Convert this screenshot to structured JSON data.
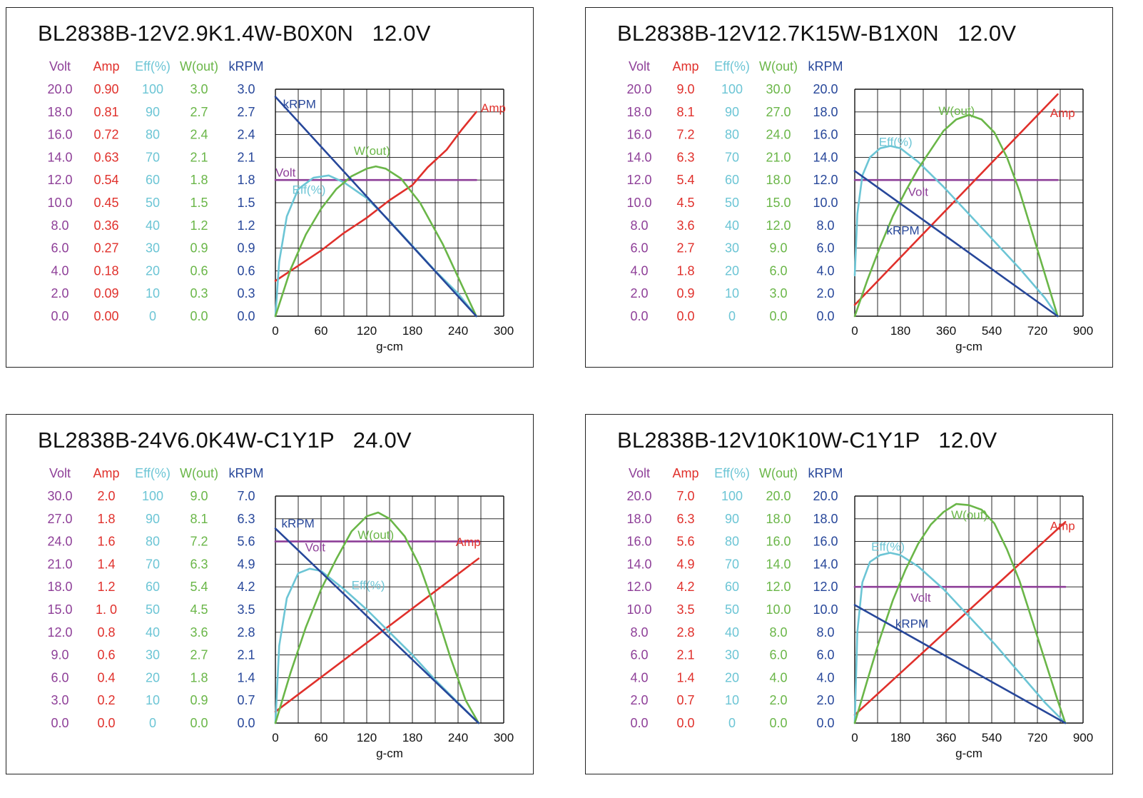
{
  "colors": {
    "volt": "#8e3f98",
    "amp": "#e0302b",
    "eff": "#6cc5d5",
    "wout": "#6ab648",
    "krpm": "#27479a",
    "grid": "#111111",
    "text": "#111111"
  },
  "chart_data": [
    {
      "type": "line",
      "title": "BL2838B-12V2.9K1.4W-B0X0N   12.0V",
      "xlabel": "g-cm",
      "x_ticks": [
        "0",
        "60",
        "120",
        "180",
        "240",
        "300"
      ],
      "xlim": [
        0,
        300
      ],
      "axes": [
        {
          "key": "volt",
          "header": "Volt",
          "ticks": [
            "0.0",
            "2.0",
            "4.0",
            "6.0",
            "8.0",
            "10.0",
            "12.0",
            "14.0",
            "16.0",
            "18.0",
            "20.0"
          ]
        },
        {
          "key": "amp",
          "header": "Amp",
          "ticks": [
            "0.00",
            "0.09",
            "0.18",
            "0.27",
            "0.36",
            "0.45",
            "0.54",
            "0.63",
            "0.72",
            "0.81",
            "0.90"
          ]
        },
        {
          "key": "eff",
          "header": "Eff(%)",
          "ticks": [
            "0",
            "10",
            "20",
            "30",
            "40",
            "50",
            "60",
            "70",
            "80",
            "90",
            "100"
          ]
        },
        {
          "key": "wout",
          "header": "W(out)",
          "ticks": [
            "0.0",
            "0.3",
            "0.6",
            "0.9",
            "1.2",
            "1.5",
            "1.8",
            "2.1",
            "2.4",
            "2.7",
            "3.0"
          ]
        },
        {
          "key": "krpm",
          "header": "kRPM",
          "ticks": [
            "0.0",
            "0.3",
            "0.6",
            "0.9",
            "1.2",
            "1.5",
            "1.8",
            "2.1",
            "2.4",
            "2.7",
            "3.0"
          ]
        }
      ],
      "series": [
        {
          "name": "Volt",
          "axis": "volt",
          "label_at": [
            0,
            12.3
          ],
          "x": [
            0,
            264
          ],
          "y": [
            12.0,
            12.0
          ]
        },
        {
          "name": "Amp",
          "axis": "amp",
          "label_at": [
            270,
            0.81
          ],
          "x": [
            0,
            30,
            60,
            90,
            120,
            150,
            180,
            200,
            225,
            245,
            264
          ],
          "y": [
            0.14,
            0.2,
            0.26,
            0.33,
            0.39,
            0.46,
            0.52,
            0.59,
            0.66,
            0.74,
            0.81
          ]
        },
        {
          "name": "Eff(%)",
          "axis": "eff",
          "label_at": [
            22,
            54
          ],
          "x": [
            0,
            5,
            15,
            30,
            50,
            70,
            90,
            120,
            150,
            180,
            210,
            240,
            264
          ],
          "y": [
            0,
            24,
            44,
            56,
            61,
            62,
            59,
            52,
            42,
            31,
            20,
            10,
            0
          ]
        },
        {
          "name": "W(out)",
          "axis": "wout",
          "label_at": [
            103,
            2.13
          ],
          "x": [
            0,
            20,
            40,
            60,
            80,
            100,
            120,
            132,
            145,
            165,
            190,
            220,
            250,
            264
          ],
          "y": [
            0,
            0.62,
            1.08,
            1.42,
            1.68,
            1.85,
            1.95,
            1.98,
            1.95,
            1.82,
            1.5,
            0.95,
            0.3,
            0
          ]
        },
        {
          "name": "kRPM",
          "axis": "krpm",
          "label_at": [
            10,
            2.75
          ],
          "x": [
            0,
            264
          ],
          "y": [
            2.9,
            0
          ]
        }
      ]
    },
    {
      "type": "line",
      "title": "BL2838B-12V12.7K15W-B1X0N   12.0V",
      "xlabel": "g-cm",
      "x_ticks": [
        "0",
        "180",
        "360",
        "540",
        "720",
        "900"
      ],
      "xlim": [
        0,
        900
      ],
      "axes": [
        {
          "key": "volt",
          "header": "Volt",
          "ticks": [
            "0.0",
            "2.0",
            "4.0",
            "6.0",
            "8.0",
            "10.0",
            "12.0",
            "14.0",
            "16.0",
            "18.0",
            "20.0"
          ]
        },
        {
          "key": "amp",
          "header": "Amp",
          "ticks": [
            "0.0",
            "0.9",
            "1.8",
            "2.7",
            "3.6",
            "4.5",
            "5.4",
            "6.3",
            "7.2",
            "8.1",
            "9.0"
          ]
        },
        {
          "key": "eff",
          "header": "Eff(%)",
          "ticks": [
            "0",
            "10",
            "20",
            "30",
            "40",
            "50",
            "60",
            "70",
            "80",
            "90",
            "100"
          ]
        },
        {
          "key": "wout",
          "header": "W(out)",
          "ticks": [
            "0.0",
            "3.0",
            "6.0",
            "9.0",
            "12.0",
            "15.0",
            "18.0",
            "21.0",
            "24.0",
            "27.0",
            "30.0"
          ]
        },
        {
          "key": "krpm",
          "header": "kRPM",
          "ticks": [
            "0.0",
            "2.0",
            "4.0",
            "6.0",
            "8.0",
            "10.0",
            "12.0",
            "14.0",
            "16.0",
            "18.0",
            "20.0"
          ]
        }
      ],
      "series": [
        {
          "name": "Volt",
          "axis": "volt",
          "label_at": [
            210,
            10.6
          ],
          "x": [
            0,
            800
          ],
          "y": [
            12.0,
            12.0
          ]
        },
        {
          "name": "Amp",
          "axis": "amp",
          "label_at": [
            770,
            7.9
          ],
          "x": [
            0,
            800
          ],
          "y": [
            0.45,
            8.8
          ]
        },
        {
          "name": "Eff(%)",
          "axis": "eff",
          "label_at": [
            95,
            75
          ],
          "x": [
            0,
            10,
            30,
            60,
            100,
            140,
            180,
            250,
            350,
            450,
            550,
            650,
            750,
            800
          ],
          "y": [
            18,
            45,
            62,
            70,
            74,
            75,
            74,
            68,
            57,
            45,
            33,
            21,
            8,
            0
          ]
        },
        {
          "name": "W(out)",
          "axis": "wout",
          "label_at": [
            330,
            26.6
          ],
          "x": [
            0,
            50,
            100,
            150,
            200,
            250,
            300,
            350,
            400,
            450,
            500,
            550,
            600,
            650,
            700,
            750,
            800
          ],
          "y": [
            0,
            4.8,
            9.2,
            13.2,
            16.5,
            19.5,
            22.0,
            24.5,
            26.0,
            26.6,
            26.0,
            24.3,
            21.0,
            16.5,
            11.0,
            5.5,
            0
          ]
        },
        {
          "name": "kRPM",
          "axis": "krpm",
          "label_at": [
            125,
            7.2
          ],
          "x": [
            0,
            800
          ],
          "y": [
            12.8,
            0
          ]
        }
      ]
    },
    {
      "type": "line",
      "title": "BL2838B-24V6.0K4W-C1Y1P   24.0V",
      "xlabel": "g-cm",
      "x_ticks": [
        "0",
        "60",
        "120",
        "180",
        "240",
        "300"
      ],
      "xlim": [
        0,
        300
      ],
      "axes": [
        {
          "key": "volt",
          "header": "Volt",
          "ticks": [
            "0.0",
            "3.0",
            "6.0",
            "9.0",
            "12.0",
            "15.0",
            "18.0",
            "21.0",
            "24.0",
            "27.0",
            "30.0"
          ]
        },
        {
          "key": "amp",
          "header": "Amp",
          "ticks": [
            "0.0",
            "0.2",
            "0.4",
            "0.6",
            "0.8",
            "1. 0",
            "1.2",
            "1.4",
            "1.6",
            "1.8",
            "2.0"
          ]
        },
        {
          "key": "eff",
          "header": "Eff(%)",
          "ticks": [
            "0",
            "10",
            "20",
            "30",
            "40",
            "50",
            "60",
            "70",
            "80",
            "90",
            "100"
          ]
        },
        {
          "key": "wout",
          "header": "W(out)",
          "ticks": [
            "0.0",
            "0.9",
            "1.8",
            "2.7",
            "3.6",
            "4.5",
            "5.4",
            "6.3",
            "7.2",
            "8.1",
            "9.0"
          ]
        },
        {
          "key": "krpm",
          "header": "kRPM",
          "ticks": [
            "0.0",
            "0.7",
            "1.4",
            "2.1",
            "2.8",
            "3.5",
            "4.2",
            "4.9",
            "5.6",
            "6.3",
            "7.0"
          ]
        }
      ],
      "series": [
        {
          "name": "Volt",
          "axis": "volt",
          "label_at": [
            39,
            22.7
          ],
          "x": [
            0,
            267
          ],
          "y": [
            24.0,
            24.0
          ]
        },
        {
          "name": "Amp",
          "axis": "amp",
          "label_at": [
            237,
            1.56
          ],
          "x": [
            0,
            267
          ],
          "y": [
            0.1,
            1.45
          ]
        },
        {
          "name": "Eff(%)",
          "axis": "eff",
          "label_at": [
            100,
            59
          ],
          "x": [
            0,
            5,
            15,
            30,
            45,
            60,
            75,
            90,
            120,
            150,
            180,
            210,
            240,
            267
          ],
          "y": [
            0,
            34,
            55,
            66,
            68,
            67,
            63,
            59,
            50,
            40,
            30,
            19,
            9,
            0
          ]
        },
        {
          "name": "W(out)",
          "axis": "wout",
          "label_at": [
            108,
            7.3
          ],
          "x": [
            0,
            20,
            40,
            60,
            80,
            100,
            120,
            135,
            150,
            170,
            190,
            210,
            230,
            250,
            267
          ],
          "y": [
            0,
            2.0,
            3.8,
            5.3,
            6.5,
            7.6,
            8.2,
            8.35,
            8.1,
            7.4,
            6.2,
            4.5,
            2.6,
            0.9,
            0
          ]
        },
        {
          "name": "kRPM",
          "axis": "krpm",
          "label_at": [
            8,
            6.03
          ],
          "x": [
            0,
            267
          ],
          "y": [
            6.0,
            0
          ]
        }
      ]
    },
    {
      "type": "line",
      "title": "BL2838B-12V10K10W-C1Y1P   12.0V",
      "xlabel": "g-cm",
      "x_ticks": [
        "0",
        "180",
        "360",
        "540",
        "720",
        "900"
      ],
      "xlim": [
        0,
        900
      ],
      "axes": [
        {
          "key": "volt",
          "header": "Volt",
          "ticks": [
            "0.0",
            "2.0",
            "4.0",
            "6.0",
            "8.0",
            "10.0",
            "12.0",
            "14.0",
            "16.0",
            "18.0",
            "20.0"
          ]
        },
        {
          "key": "amp",
          "header": "Amp",
          "ticks": [
            "0.0",
            "0.7",
            "1.4",
            "2.1",
            "2.8",
            "3.5",
            "4.2",
            "4.9",
            "5.6",
            "6.3",
            "7.0"
          ]
        },
        {
          "key": "eff",
          "header": "Eff(%)",
          "ticks": [
            "0",
            "10",
            "20",
            "30",
            "40",
            "50",
            "60",
            "70",
            "80",
            "90",
            "100"
          ]
        },
        {
          "key": "wout",
          "header": "W(out)",
          "ticks": [
            "0.0",
            "2.0",
            "4.0",
            "6.0",
            "8.0",
            "10.0",
            "12.0",
            "14.0",
            "16.0",
            "18.0",
            "20.0"
          ]
        },
        {
          "key": "krpm",
          "header": "kRPM",
          "ticks": [
            "0.0",
            "2.0",
            "4.0",
            "6.0",
            "8.0",
            "10.0",
            "12.0",
            "14.0",
            "16.0",
            "18.0",
            "20.0"
          ]
        }
      ],
      "series": [
        {
          "name": "Volt",
          "axis": "volt",
          "label_at": [
            220,
            10.7
          ],
          "x": [
            0,
            830
          ],
          "y": [
            12.0,
            12.0
          ]
        },
        {
          "name": "Amp",
          "axis": "amp",
          "label_at": [
            770,
            5.95
          ],
          "x": [
            0,
            830
          ],
          "y": [
            0.25,
            6.2
          ]
        },
        {
          "name": "Eff(%)",
          "axis": "eff",
          "label_at": [
            65,
            76
          ],
          "x": [
            0,
            10,
            30,
            60,
            100,
            140,
            180,
            250,
            350,
            450,
            550,
            650,
            750,
            830
          ],
          "y": [
            0,
            40,
            62,
            71,
            74,
            75,
            74,
            69,
            59,
            47,
            35,
            22,
            9,
            0
          ]
        },
        {
          "name": "W(out)",
          "axis": "wout",
          "label_at": [
            380,
            18.0
          ],
          "x": [
            0,
            50,
            100,
            150,
            200,
            250,
            300,
            350,
            400,
            450,
            500,
            550,
            600,
            650,
            700,
            750,
            800,
            830
          ],
          "y": [
            0,
            3.8,
            7.5,
            10.8,
            13.5,
            15.8,
            17.5,
            18.6,
            19.3,
            19.2,
            18.8,
            17.6,
            15.3,
            12.5,
            9.0,
            5.5,
            2.0,
            0
          ]
        },
        {
          "name": "kRPM",
          "axis": "krpm",
          "label_at": [
            160,
            8.4
          ],
          "x": [
            0,
            830
          ],
          "y": [
            10.4,
            0
          ]
        }
      ]
    }
  ]
}
